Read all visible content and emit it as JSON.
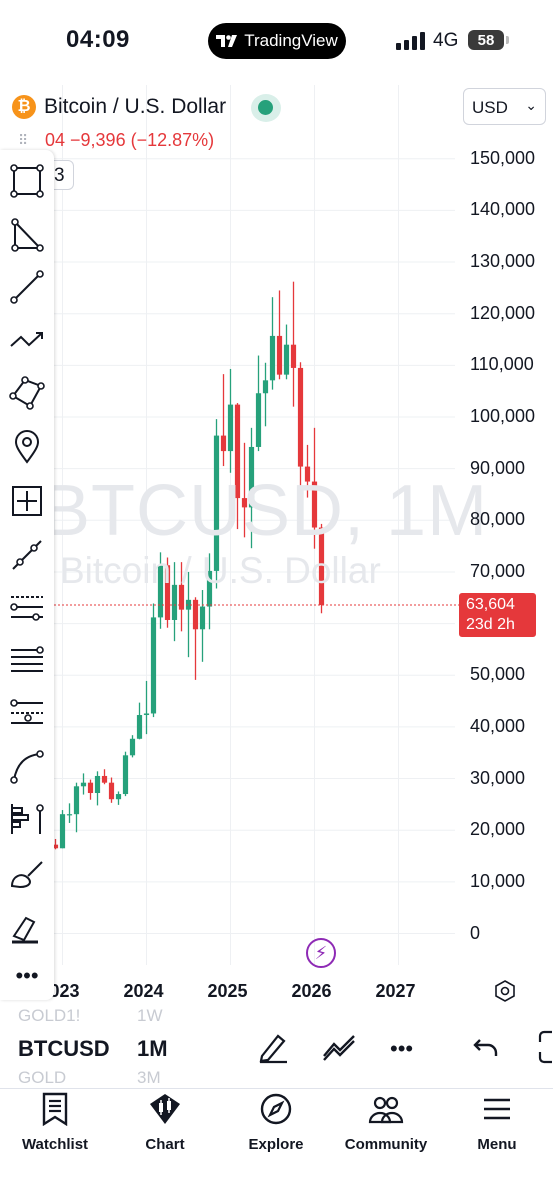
{
  "status_bar": {
    "time": "04:09",
    "app_pill": "TradingView",
    "network": "4G",
    "battery": "58"
  },
  "header": {
    "symbol_title": "Bitcoin / U.S. Dollar",
    "currency": "USD",
    "change_line": "04  −9,396 (−12.87%)",
    "indicator_count": "3"
  },
  "chart_data": {
    "type": "candlestick",
    "symbol": "BTCUSD",
    "interval": "1M",
    "watermark": "BTCUSD, 1M",
    "watermark_sub": "Bitcoin / U.S. Dollar",
    "y_ticks": [
      150000,
      140000,
      130000,
      120000,
      110000,
      100000,
      90000,
      80000,
      70000,
      60000,
      50000,
      40000,
      30000,
      20000,
      10000,
      0
    ],
    "y_tick_labels": [
      "150,000",
      "140,000",
      "130,000",
      "120,000",
      "110,000",
      "100,000",
      "90,000",
      "80,000",
      "70,000",
      "",
      "50,000",
      "40,000",
      "30,000",
      "20,000",
      "10,000",
      "0"
    ],
    "ylim": [
      -4000,
      157000
    ],
    "x_labels": [
      "2023",
      "2024",
      "2025",
      "2026",
      "2027"
    ],
    "last_price": "63,604",
    "countdown": "23d 2h",
    "last_price_value": 63604,
    "colors": {
      "up": "#26a17b",
      "down": "#e5383b",
      "grid": "#eef0f3"
    },
    "candles": [
      {
        "date": "2022-12",
        "o": 17200,
        "h": 18300,
        "l": 16300,
        "c": 16500
      },
      {
        "date": "2023-01",
        "o": 16500,
        "h": 23900,
        "l": 16500,
        "c": 23100
      },
      {
        "date": "2023-02",
        "o": 23100,
        "h": 25200,
        "l": 21400,
        "c": 23100
      },
      {
        "date": "2023-03",
        "o": 23100,
        "h": 29200,
        "l": 19600,
        "c": 28500
      },
      {
        "date": "2023-04",
        "o": 28500,
        "h": 31000,
        "l": 26900,
        "c": 29200
      },
      {
        "date": "2023-05",
        "o": 29200,
        "h": 29800,
        "l": 25900,
        "c": 27200
      },
      {
        "date": "2023-06",
        "o": 27200,
        "h": 31400,
        "l": 24800,
        "c": 30500
      },
      {
        "date": "2023-07",
        "o": 30500,
        "h": 31800,
        "l": 28900,
        "c": 29200
      },
      {
        "date": "2023-08",
        "o": 29200,
        "h": 30200,
        "l": 25300,
        "c": 26000
      },
      {
        "date": "2023-09",
        "o": 26000,
        "h": 27500,
        "l": 24900,
        "c": 27000
      },
      {
        "date": "2023-10",
        "o": 27000,
        "h": 35200,
        "l": 26600,
        "c": 34500
      },
      {
        "date": "2023-11",
        "o": 34500,
        "h": 38400,
        "l": 34100,
        "c": 37700
      },
      {
        "date": "2023-12",
        "o": 37700,
        "h": 44700,
        "l": 37600,
        "c": 42300
      },
      {
        "date": "2024-01",
        "o": 42300,
        "h": 48900,
        "l": 38600,
        "c": 42600
      },
      {
        "date": "2024-02",
        "o": 42600,
        "h": 63900,
        "l": 41900,
        "c": 61200
      },
      {
        "date": "2024-03",
        "o": 61200,
        "h": 73800,
        "l": 59000,
        "c": 71300
      },
      {
        "date": "2024-04",
        "o": 71300,
        "h": 72800,
        "l": 59200,
        "c": 60700
      },
      {
        "date": "2024-05",
        "o": 60700,
        "h": 71900,
        "l": 56600,
        "c": 67500
      },
      {
        "date": "2024-06",
        "o": 67500,
        "h": 71900,
        "l": 58500,
        "c": 62700
      },
      {
        "date": "2024-07",
        "o": 62700,
        "h": 70000,
        "l": 53500,
        "c": 64600
      },
      {
        "date": "2024-08",
        "o": 64600,
        "h": 65100,
        "l": 49100,
        "c": 58900
      },
      {
        "date": "2024-09",
        "o": 58900,
        "h": 66500,
        "l": 52600,
        "c": 63300
      },
      {
        "date": "2024-10",
        "o": 63300,
        "h": 73600,
        "l": 58900,
        "c": 70200
      },
      {
        "date": "2024-11",
        "o": 70200,
        "h": 99600,
        "l": 66800,
        "c": 96400
      },
      {
        "date": "2024-12",
        "o": 96400,
        "h": 108300,
        "l": 90500,
        "c": 93400
      },
      {
        "date": "2025-01",
        "o": 93400,
        "h": 109300,
        "l": 89200,
        "c": 102400
      },
      {
        "date": "2025-02",
        "o": 102400,
        "h": 102700,
        "l": 78300,
        "c": 84300
      },
      {
        "date": "2025-03",
        "o": 84300,
        "h": 95000,
        "l": 76700,
        "c": 82500
      },
      {
        "date": "2025-04",
        "o": 82500,
        "h": 97900,
        "l": 74600,
        "c": 94200
      },
      {
        "date": "2025-05",
        "o": 94200,
        "h": 111900,
        "l": 93400,
        "c": 104600
      },
      {
        "date": "2025-06",
        "o": 104600,
        "h": 110500,
        "l": 98200,
        "c": 107100
      },
      {
        "date": "2025-07",
        "o": 107100,
        "h": 123200,
        "l": 105300,
        "c": 115700
      },
      {
        "date": "2025-08",
        "o": 115700,
        "h": 124500,
        "l": 107300,
        "c": 108200
      },
      {
        "date": "2025-09",
        "o": 108200,
        "h": 117900,
        "l": 107300,
        "c": 114000
      },
      {
        "date": "2025-10",
        "o": 114000,
        "h": 126200,
        "l": 102000,
        "c": 109500
      },
      {
        "date": "2025-11",
        "o": 109500,
        "h": 110600,
        "l": 80600,
        "c": 90400
      },
      {
        "date": "2025-12",
        "o": 90400,
        "h": 94600,
        "l": 84400,
        "c": 87500
      },
      {
        "date": "2026-01",
        "o": 87500,
        "h": 97900,
        "l": 74500,
        "c": 78600
      },
      {
        "date": "2026-02",
        "o": 78600,
        "h": 79300,
        "l": 62000,
        "c": 63604
      }
    ]
  },
  "bottom_bar": {
    "symbol": "BTCUSD",
    "interval": "1M",
    "ghost_above_symbol": "GOLD1!",
    "ghost_above_interval": "1W",
    "ghost_below_symbol": "GOLD",
    "ghost_below_interval": "3M"
  },
  "tabs": [
    {
      "label": "Watchlist",
      "icon": "watchlist-icon"
    },
    {
      "label": "Chart",
      "icon": "chart-candle-icon"
    },
    {
      "label": "Explore",
      "icon": "compass-icon"
    },
    {
      "label": "Community",
      "icon": "community-icon"
    },
    {
      "label": "Menu",
      "icon": "menu-icon"
    }
  ],
  "toolbar_tools": [
    "rectangle-icon",
    "triangle-icon",
    "trend-line-icon",
    "path-icon",
    "polygon-icon",
    "pin-icon",
    "measure-icon",
    "ray-icon",
    "fib-retracement-icon",
    "horizontal-lines-icon",
    "fib-extension-icon",
    "curve-icon",
    "volume-profile-icon",
    "brush-icon",
    "highlighter-icon",
    "more-tools-icon"
  ]
}
